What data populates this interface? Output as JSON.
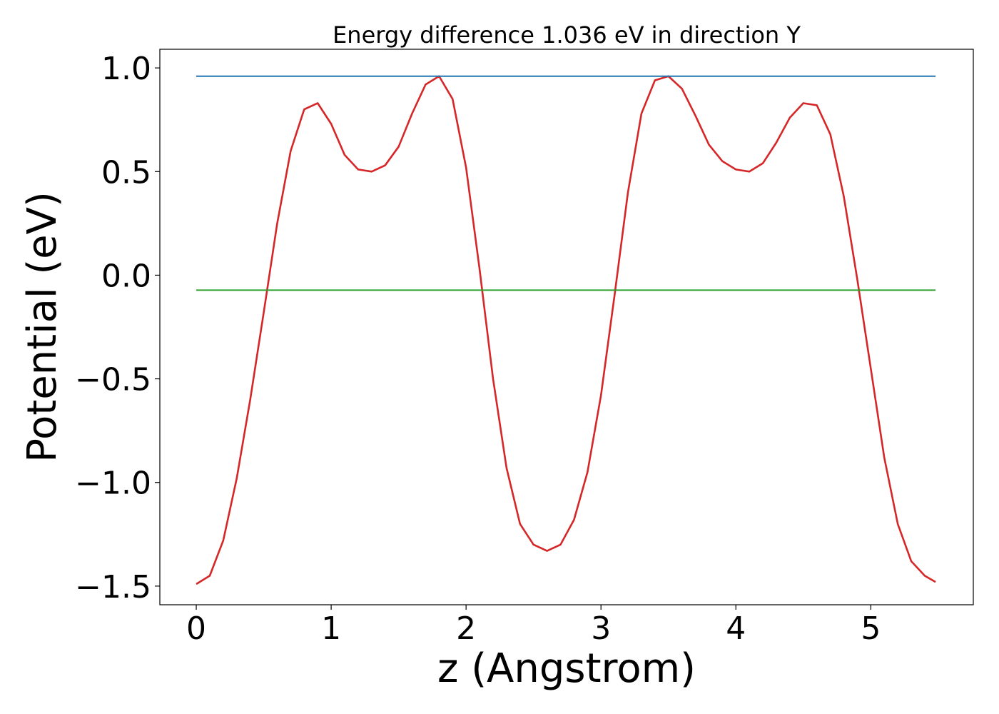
{
  "chart_data": {
    "type": "line",
    "title": "Energy difference 1.036 eV in direction Y",
    "xlabel": "z (Angstrom)",
    "ylabel": "Potential (eV)",
    "xlim": [
      -0.27,
      5.76
    ],
    "ylim": [
      -1.59,
      1.09
    ],
    "xticks": [
      0,
      1,
      2,
      3,
      4,
      5
    ],
    "xtick_labels": [
      "0",
      "1",
      "2",
      "3",
      "4",
      "5"
    ],
    "yticks": [
      1.0,
      0.5,
      0.0,
      -0.5,
      -1.0,
      -1.5
    ],
    "ytick_labels": [
      "1.0",
      "0.5",
      "0.0",
      "−0.5",
      "−1.0",
      "−1.5"
    ],
    "grid": false,
    "legend": "none",
    "series": [
      {
        "color": "#d62728",
        "x": [
          0.0,
          0.1,
          0.2,
          0.3,
          0.4,
          0.5,
          0.6,
          0.7,
          0.8,
          0.9,
          1.0,
          1.1,
          1.2,
          1.3,
          1.4,
          1.5,
          1.6,
          1.7,
          1.8,
          1.9,
          2.0,
          2.1,
          2.2,
          2.3,
          2.4,
          2.5,
          2.6,
          2.7,
          2.8,
          2.9,
          3.0,
          3.1,
          3.2,
          3.3,
          3.4,
          3.5,
          3.6,
          3.7,
          3.8,
          3.9,
          4.0,
          4.1,
          4.2,
          4.3,
          4.4,
          4.5,
          4.6,
          4.7,
          4.8,
          4.9,
          5.0,
          5.1,
          5.2,
          5.3,
          5.4,
          5.48
        ],
        "y": [
          -1.49,
          -1.45,
          -1.28,
          -0.98,
          -0.6,
          -0.18,
          0.25,
          0.6,
          0.8,
          0.83,
          0.73,
          0.58,
          0.51,
          0.5,
          0.53,
          0.62,
          0.78,
          0.92,
          0.96,
          0.85,
          0.52,
          0.03,
          -0.5,
          -0.93,
          -1.2,
          -1.3,
          -1.33,
          -1.3,
          -1.18,
          -0.95,
          -0.58,
          -0.1,
          0.4,
          0.78,
          0.94,
          0.96,
          0.9,
          0.77,
          0.63,
          0.55,
          0.51,
          0.5,
          0.54,
          0.64,
          0.76,
          0.83,
          0.82,
          0.68,
          0.38,
          -0.02,
          -0.45,
          -0.88,
          -1.2,
          -1.38,
          -1.45,
          -1.48
        ]
      },
      {
        "color": "#1f77b4",
        "x": [
          0.0,
          5.48
        ],
        "y": [
          0.96,
          0.96
        ]
      },
      {
        "color": "#2ca02c",
        "x": [
          0.0,
          5.48
        ],
        "y": [
          -0.072,
          -0.072
        ]
      }
    ]
  }
}
